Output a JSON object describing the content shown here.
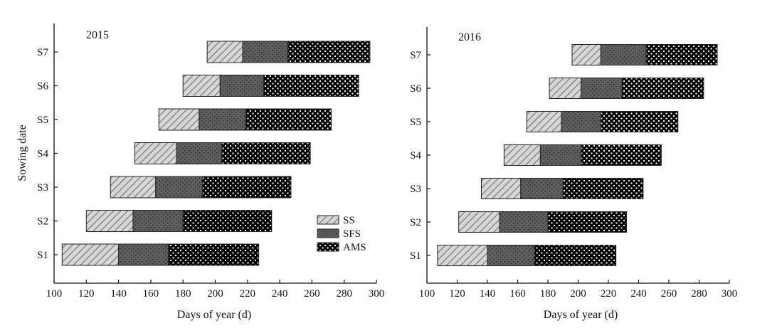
{
  "chart_data": [
    {
      "type": "bar",
      "orientation": "horizontal",
      "stacked": true,
      "title": "2015",
      "xlabel": "Days of year (d)",
      "ylabel": "Sowing date",
      "xlim": [
        100,
        300
      ],
      "xticks": [
        100,
        120,
        140,
        160,
        180,
        200,
        220,
        240,
        260,
        280,
        300
      ],
      "categories": [
        "S1",
        "S2",
        "S3",
        "S4",
        "S5",
        "S6",
        "S7"
      ],
      "segments": [
        {
          "name": "SS",
          "start": [
            105,
            120,
            135,
            150,
            165,
            180,
            195
          ],
          "end": [
            140,
            149,
            163,
            176,
            190,
            203,
            217
          ]
        },
        {
          "name": "SFS",
          "start": [
            140,
            149,
            163,
            176,
            190,
            203,
            217
          ],
          "end": [
            171,
            180,
            192,
            204,
            219,
            230,
            245
          ]
        },
        {
          "name": "AMS",
          "start": [
            171,
            180,
            192,
            204,
            219,
            230,
            245
          ],
          "end": [
            227,
            235,
            247,
            259,
            272,
            289,
            296
          ]
        }
      ],
      "legend": {
        "position": "bottom-right",
        "entries": [
          "SS",
          "SFS",
          "AMS"
        ]
      }
    },
    {
      "type": "bar",
      "orientation": "horizontal",
      "stacked": true,
      "title": "2016",
      "xlabel": "Days of year (d)",
      "ylabel": "",
      "xlim": [
        100,
        300
      ],
      "xticks": [
        100,
        120,
        140,
        160,
        180,
        200,
        220,
        240,
        260,
        280,
        300
      ],
      "categories": [
        "S1",
        "S2",
        "S3",
        "S4",
        "S5",
        "S6",
        "S7"
      ],
      "segments": [
        {
          "name": "SS",
          "start": [
            107,
            121,
            136,
            151,
            166,
            181,
            196
          ],
          "end": [
            140,
            148,
            162,
            175,
            189,
            202,
            215
          ]
        },
        {
          "name": "SFS",
          "start": [
            140,
            148,
            162,
            175,
            189,
            202,
            215
          ],
          "end": [
            171,
            180,
            190,
            202,
            215,
            229,
            245
          ]
        },
        {
          "name": "AMS",
          "start": [
            171,
            180,
            190,
            202,
            215,
            229,
            245
          ],
          "end": [
            225,
            232,
            243,
            255,
            266,
            283,
            292
          ]
        }
      ]
    }
  ],
  "colors": {
    "SS": "#c8c8c8",
    "SFS": "#5a5a5a",
    "AMS": "#050505",
    "axis": "#111111"
  }
}
